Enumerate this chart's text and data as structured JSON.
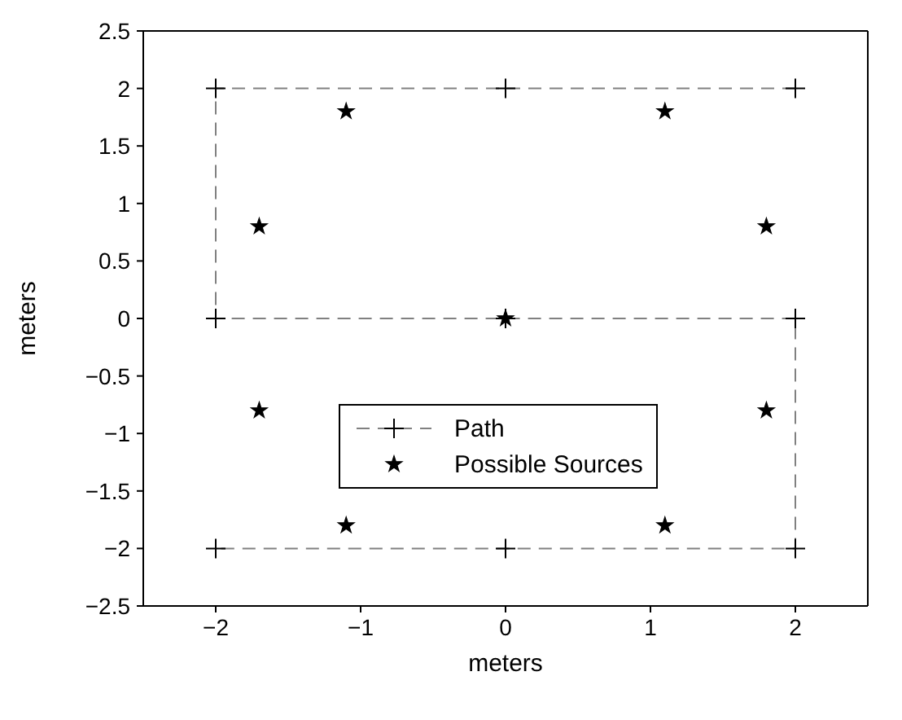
{
  "chart_data": {
    "type": "scatter",
    "xlabel": "meters",
    "ylabel": "meters",
    "xlim": [
      -2.5,
      2.5
    ],
    "xticks": [
      -2,
      -1,
      0,
      1,
      2
    ],
    "ylim": [
      -2.5,
      2.5
    ],
    "yticks": [
      -2.5,
      -2,
      -1.5,
      -1,
      -0.5,
      0,
      0.5,
      1,
      1.5,
      2,
      2.5
    ],
    "legend": "bottom",
    "series": [
      {
        "name": "Path",
        "type": "line",
        "color": "#808080",
        "marker": "cross",
        "line_style": "dashed",
        "x": [
          2,
          0,
          -2,
          -2,
          0,
          2,
          2,
          0,
          -2
        ],
        "values": [
          2,
          2,
          2,
          0,
          0,
          0,
          -2,
          -2,
          -2
        ]
      },
      {
        "name": "Possible Sources",
        "color": "#000000",
        "marker": "star",
        "x": [
          -1.1,
          1.1,
          -1.7,
          1.8,
          0,
          -1.7,
          1.8,
          -1.1,
          1.1
        ],
        "values": [
          1.8,
          1.8,
          0.8,
          0.8,
          0,
          -0.8,
          -0.8,
          -1.8,
          -1.8
        ]
      }
    ]
  }
}
